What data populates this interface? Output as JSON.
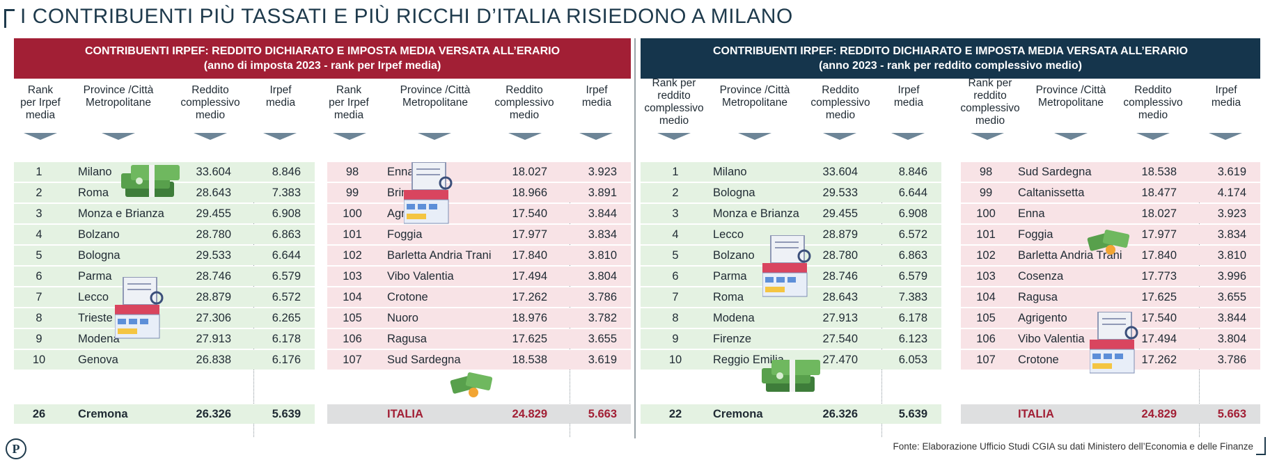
{
  "headline": "I CONTRIBUENTI PIÙ TASSATI E PIÙ RICCHI D’ITALIA RISIEDONO A MILANO",
  "left": {
    "banner_line1": "CONTRIBUENTI IRPEF: REDDITO DICHIARATO E IMPOSTA MEDIA VERSATA ALL’ERARIO",
    "banner_line2": "(anno di imposta 2023 - rank per Irpef media)",
    "headers": {
      "rank": "Rank per Irpef media",
      "province": "Province /Città Metropolitane",
      "reddito": "Reddito complessivo medio",
      "irpef": "Irpef media"
    },
    "top": [
      {
        "rank": "1",
        "name": "Milano",
        "reddito": "33.604",
        "irpef": "8.846"
      },
      {
        "rank": "2",
        "name": "Roma",
        "reddito": "28.643",
        "irpef": "7.383"
      },
      {
        "rank": "3",
        "name": "Monza e Brianza",
        "reddito": "29.455",
        "irpef": "6.908"
      },
      {
        "rank": "4",
        "name": "Bolzano",
        "reddito": "28.780",
        "irpef": "6.863"
      },
      {
        "rank": "5",
        "name": "Bologna",
        "reddito": "29.533",
        "irpef": "6.644"
      },
      {
        "rank": "6",
        "name": "Parma",
        "reddito": "28.746",
        "irpef": "6.579"
      },
      {
        "rank": "7",
        "name": "Lecco",
        "reddito": "28.879",
        "irpef": "6.572"
      },
      {
        "rank": "8",
        "name": "Trieste",
        "reddito": "27.306",
        "irpef": "6.265"
      },
      {
        "rank": "9",
        "name": "Modena",
        "reddito": "27.913",
        "irpef": "6.178"
      },
      {
        "rank": "10",
        "name": "Genova",
        "reddito": "26.838",
        "irpef": "6.176"
      }
    ],
    "top_total": {
      "rank": "26",
      "name": "Cremona",
      "reddito": "26.326",
      "irpef": "5.639"
    },
    "bottom": [
      {
        "rank": "98",
        "name": "Enna",
        "reddito": "18.027",
        "irpef": "3.923"
      },
      {
        "rank": "99",
        "name": "Brindisi",
        "reddito": "18.966",
        "irpef": "3.891"
      },
      {
        "rank": "100",
        "name": "Agrigento",
        "reddito": "17.540",
        "irpef": "3.844"
      },
      {
        "rank": "101",
        "name": "Foggia",
        "reddito": "17.977",
        "irpef": "3.834"
      },
      {
        "rank": "102",
        "name": "Barletta Andria Trani",
        "reddito": "17.840",
        "irpef": "3.810"
      },
      {
        "rank": "103",
        "name": "Vibo Valentia",
        "reddito": "17.494",
        "irpef": "3.804"
      },
      {
        "rank": "104",
        "name": "Crotone",
        "reddito": "17.262",
        "irpef": "3.786"
      },
      {
        "rank": "105",
        "name": "Nuoro",
        "reddito": "18.976",
        "irpef": "3.782"
      },
      {
        "rank": "106",
        "name": "Ragusa",
        "reddito": "17.625",
        "irpef": "3.655"
      },
      {
        "rank": "107",
        "name": "Sud Sardegna",
        "reddito": "18.538",
        "irpef": "3.619"
      }
    ],
    "bottom_total": {
      "name": "ITALIA",
      "reddito": "24.829",
      "irpef": "5.663"
    }
  },
  "right": {
    "banner_line1": "CONTRIBUENTI IRPEF: REDDITO DICHIARATO E IMPOSTA  MEDIA VERSATA ALL’ERARIO",
    "banner_line2": "(anno 2023 - rank per reddito complessivo medio)",
    "headers": {
      "rank": "Rank per reddito complessivo medio",
      "province": "Province /Città Metropolitane",
      "reddito": "Reddito complessivo medio",
      "irpef": "Irpef media"
    },
    "top": [
      {
        "rank": "1",
        "name": "Milano",
        "reddito": "33.604",
        "irpef": "8.846"
      },
      {
        "rank": "2",
        "name": "Bologna",
        "reddito": "29.533",
        "irpef": "6.644"
      },
      {
        "rank": "3",
        "name": "Monza e Brianza",
        "reddito": "29.455",
        "irpef": "6.908"
      },
      {
        "rank": "4",
        "name": "Lecco",
        "reddito": "28.879",
        "irpef": "6.572"
      },
      {
        "rank": "5",
        "name": "Bolzano",
        "reddito": "28.780",
        "irpef": "6.863"
      },
      {
        "rank": "6",
        "name": "Parma",
        "reddito": "28.746",
        "irpef": "6.579"
      },
      {
        "rank": "7",
        "name": "Roma",
        "reddito": "28.643",
        "irpef": "7.383"
      },
      {
        "rank": "8",
        "name": "Modena",
        "reddito": "27.913",
        "irpef": "6.178"
      },
      {
        "rank": "9",
        "name": "Firenze",
        "reddito": "27.540",
        "irpef": "6.123"
      },
      {
        "rank": "10",
        "name": "Reggio Emilia",
        "reddito": "27.470",
        "irpef": "6.053"
      }
    ],
    "top_total": {
      "rank": "22",
      "name": "Cremona",
      "reddito": "26.326",
      "irpef": "5.639"
    },
    "bottom": [
      {
        "rank": "98",
        "name": "Sud Sardegna",
        "reddito": "18.538",
        "irpef": "3.619"
      },
      {
        "rank": "99",
        "name": "Caltanissetta",
        "reddito": "18.477",
        "irpef": "4.174"
      },
      {
        "rank": "100",
        "name": "Enna",
        "reddito": "18.027",
        "irpef": "3.923"
      },
      {
        "rank": "101",
        "name": "Foggia",
        "reddito": "17.977",
        "irpef": "3.834"
      },
      {
        "rank": "102",
        "name": "Barletta Andria Trani",
        "reddito": "17.840",
        "irpef": "3.810"
      },
      {
        "rank": "103",
        "name": "Cosenza",
        "reddito": "17.773",
        "irpef": "3.996"
      },
      {
        "rank": "104",
        "name": "Ragusa",
        "reddito": "17.625",
        "irpef": "3.655"
      },
      {
        "rank": "105",
        "name": "Agrigento",
        "reddito": "17.540",
        "irpef": "3.844"
      },
      {
        "rank": "106",
        "name": "Vibo Valentia",
        "reddito": "17.494",
        "irpef": "3.804"
      },
      {
        "rank": "107",
        "name": "Crotone",
        "reddito": "17.262",
        "irpef": "3.786"
      }
    ],
    "bottom_total": {
      "name": "ITALIA",
      "reddito": "24.829",
      "irpef": "5.663"
    }
  },
  "footer": {
    "logo": "P",
    "source": "Fonte: Elaborazione Ufficio Studi CGIA su dati Ministero dell’Economia e delle Finanze"
  },
  "colors": {
    "banner_left": "#a21f35",
    "banner_right": "#15354c",
    "row_green": "#e4f2e2",
    "row_pink": "#f8e3e6",
    "italia": "#a21f35"
  }
}
